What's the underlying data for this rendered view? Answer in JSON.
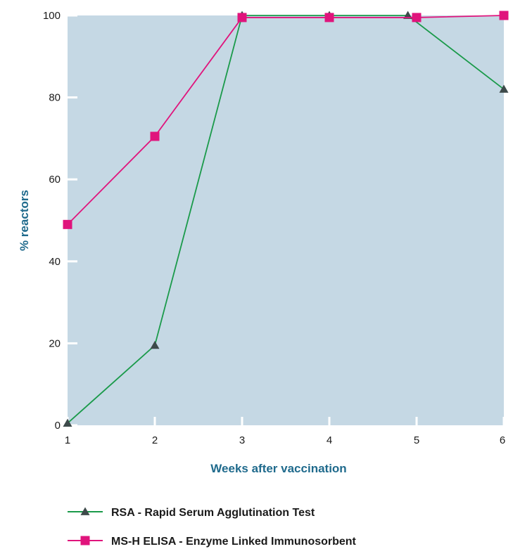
{
  "chart_data": {
    "type": "line",
    "x": [
      1,
      2,
      3,
      4,
      5,
      6
    ],
    "xlabel": "Weeks after vaccination",
    "ylabel": "% reactors",
    "xlim": [
      1,
      6
    ],
    "ylim": [
      0,
      100
    ],
    "xticks": [
      "1",
      "2",
      "3",
      "4",
      "5",
      "6"
    ],
    "yticks": [
      "0",
      "20",
      "40",
      "60",
      "80",
      "100"
    ],
    "grid": false,
    "legend_position": "bottom",
    "series": [
      {
        "name": "RSA - Rapid Serum Agglutination Test",
        "x": [
          1,
          2,
          3,
          4,
          4.9,
          6
        ],
        "values": [
          0.5,
          19.5,
          100,
          100,
          100,
          82
        ],
        "color": "#1a9a4a",
        "marker": "triangle",
        "marker_color": "#3d4a4a"
      },
      {
        "name": "MS-H ELISA - Enzyme Linked Immunosorbent",
        "x": [
          1,
          2,
          3,
          4,
          5,
          6
        ],
        "values": [
          49,
          70.5,
          99.5,
          99.5,
          99.5,
          100
        ],
        "color": "#e0147c",
        "marker": "square",
        "marker_color": "#e0147c"
      }
    ],
    "colors": {
      "plot_background": "#c5d8e4",
      "axis_tick": "#ffffff",
      "axis_title": "#1f6a8c"
    }
  }
}
